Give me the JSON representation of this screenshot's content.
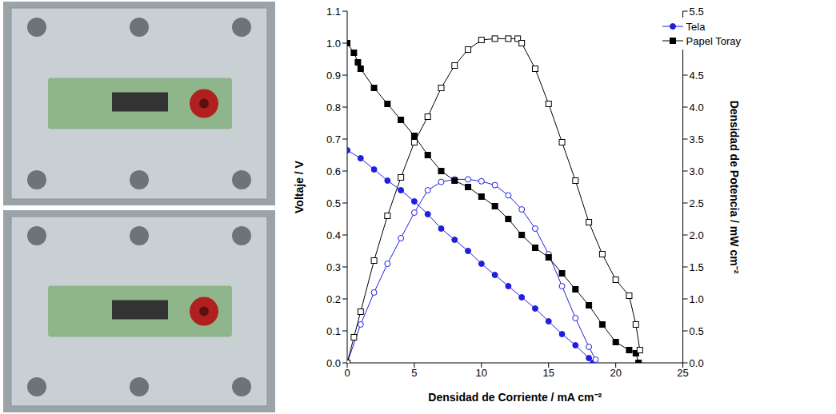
{
  "chart_data": {
    "type": "line",
    "xlabel": "Densidad de Corriente / mA cm⁻²",
    "ylabel": "Voltaje / V",
    "y2label": "Densidad de Potencia / mW cm⁻²",
    "xlim": [
      0,
      25
    ],
    "xticks": [
      0,
      5,
      10,
      15,
      20,
      25
    ],
    "ylim": [
      0,
      1.1
    ],
    "yticks": [
      {
        "value": 0,
        "label": "0.0"
      },
      0.1,
      0.2,
      0.3,
      0.4,
      0.5,
      0.6,
      0.7,
      0.8,
      0.9,
      {
        "value": 1,
        "label": "1.0"
      },
      1.1
    ],
    "y2lim": [
      0,
      5.5
    ],
    "y2ticks": [
      {
        "value": 0,
        "label": "0.0"
      },
      0.5,
      {
        "value": 1,
        "label": "1.0"
      },
      1.5,
      {
        "value": 2,
        "label": "2.0"
      },
      2.5,
      {
        "value": 3,
        "label": "3.0"
      },
      3.5,
      {
        "value": 4,
        "label": "4.0"
      },
      4.5,
      {
        "value": 5,
        "label": "5.0"
      },
      5.5
    ],
    "legend": "upper right",
    "grid": false,
    "series": [
      {
        "name": "Tela",
        "color": "#1f1fe0",
        "marker": "circle",
        "x": [
          0,
          1,
          2,
          3,
          4,
          5,
          6,
          7,
          8,
          9,
          10,
          11,
          12,
          13,
          14,
          15,
          16,
          17,
          18,
          18.3
        ],
        "values": [
          0.665,
          0.64,
          0.605,
          0.57,
          0.54,
          0.505,
          0.465,
          0.42,
          0.385,
          0.35,
          0.31,
          0.275,
          0.24,
          0.205,
          0.17,
          0.13,
          0.09,
          0.055,
          0.015,
          0.0
        ]
      },
      {
        "name": "Tela",
        "color": "#1f1fe0",
        "marker": "open_circle",
        "axis": "y2",
        "x": [
          0,
          1,
          2,
          3,
          4,
          5,
          6,
          7,
          8,
          9,
          10,
          11,
          12,
          13,
          14,
          15,
          16,
          17,
          18,
          18.5
        ],
        "values": [
          0,
          0.6,
          1.1,
          1.55,
          1.95,
          2.35,
          2.7,
          2.83,
          2.87,
          2.87,
          2.84,
          2.78,
          2.62,
          2.4,
          2.1,
          1.7,
          1.2,
          0.7,
          0.25,
          0.05
        ]
      },
      {
        "name": "Papel Toray",
        "color": "#000000",
        "marker": "square",
        "x": [
          0,
          0.5,
          0.8,
          1,
          2,
          3,
          4,
          5,
          6,
          7,
          8,
          9,
          10,
          11,
          12,
          13,
          14,
          15,
          16,
          17,
          18,
          19,
          20,
          21,
          21.5,
          21.7
        ],
        "values": [
          1.0,
          0.97,
          0.94,
          0.92,
          0.86,
          0.81,
          0.76,
          0.71,
          0.65,
          0.6,
          0.57,
          0.55,
          0.52,
          0.49,
          0.45,
          0.4,
          0.36,
          0.33,
          0.28,
          0.23,
          0.18,
          0.12,
          0.065,
          0.04,
          0.03,
          0.0
        ]
      },
      {
        "name": "Papel Toray",
        "color": "#000000",
        "marker": "open_square",
        "axis": "y2",
        "x": [
          0,
          0.5,
          1,
          2,
          3,
          4,
          5,
          6,
          7,
          8,
          9,
          10,
          11,
          12,
          12.7,
          13,
          14,
          15,
          16,
          17,
          18,
          19,
          20,
          21,
          21.5,
          21.8
        ],
        "values": [
          0,
          0.4,
          0.8,
          1.6,
          2.3,
          2.9,
          3.45,
          3.85,
          4.3,
          4.65,
          4.9,
          5.05,
          5.07,
          5.07,
          5.07,
          5.0,
          4.6,
          4.05,
          3.45,
          2.85,
          2.2,
          1.7,
          1.3,
          1.05,
          0.6,
          0.2
        ]
      }
    ]
  }
}
